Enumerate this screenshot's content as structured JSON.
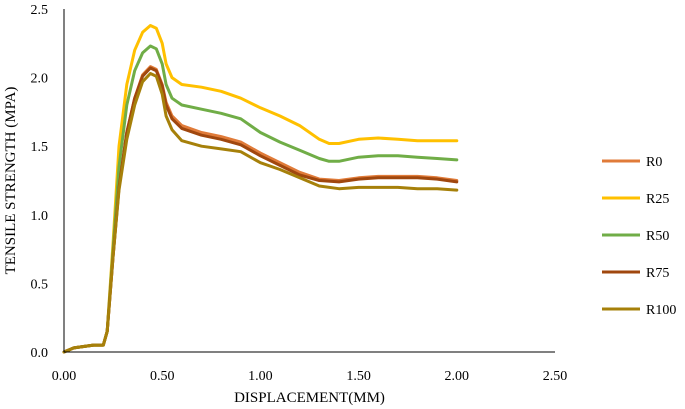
{
  "chart_data": {
    "type": "line",
    "title": "",
    "xlabel": "DISPLACEMENT(MM)",
    "ylabel": "TENSILE STRENGTH (MPA)",
    "xlim": [
      0,
      2.5
    ],
    "ylim": [
      0,
      2.5
    ],
    "x_ticks": [
      0,
      0.5,
      1,
      1.5,
      2,
      2.5
    ],
    "x_tick_labels": [
      "0.00",
      "0.50",
      "1.00",
      "1.50",
      "2.00",
      "2.50"
    ],
    "y_ticks": [
      0,
      0.5,
      1,
      1.5,
      2,
      2.5
    ],
    "y_tick_labels": [
      "0.0",
      "0.5",
      "1.0",
      "1.5",
      "2.0",
      "2.5"
    ],
    "grid": false,
    "legend_position": "right",
    "series": [
      {
        "name": "R0",
        "color": "#E07B39",
        "points": [
          [
            0,
            0
          ],
          [
            0.05,
            0.03
          ],
          [
            0.1,
            0.04
          ],
          [
            0.15,
            0.05
          ],
          [
            0.2,
            0.05
          ],
          [
            0.22,
            0.15
          ],
          [
            0.25,
            0.7
          ],
          [
            0.28,
            1.2
          ],
          [
            0.32,
            1.6
          ],
          [
            0.36,
            1.85
          ],
          [
            0.4,
            2.02
          ],
          [
            0.44,
            2.08
          ],
          [
            0.47,
            2.06
          ],
          [
            0.5,
            1.95
          ],
          [
            0.52,
            1.82
          ],
          [
            0.55,
            1.72
          ],
          [
            0.6,
            1.65
          ],
          [
            0.7,
            1.6
          ],
          [
            0.8,
            1.57
          ],
          [
            0.9,
            1.53
          ],
          [
            1.0,
            1.45
          ],
          [
            1.1,
            1.38
          ],
          [
            1.2,
            1.31
          ],
          [
            1.3,
            1.26
          ],
          [
            1.4,
            1.25
          ],
          [
            1.5,
            1.27
          ],
          [
            1.6,
            1.28
          ],
          [
            1.7,
            1.28
          ],
          [
            1.8,
            1.28
          ],
          [
            1.9,
            1.27
          ],
          [
            2.0,
            1.25
          ]
        ]
      },
      {
        "name": "R25",
        "color": "#FFC000",
        "points": [
          [
            0,
            0
          ],
          [
            0.05,
            0.03
          ],
          [
            0.1,
            0.04
          ],
          [
            0.15,
            0.05
          ],
          [
            0.2,
            0.05
          ],
          [
            0.22,
            0.15
          ],
          [
            0.25,
            0.8
          ],
          [
            0.28,
            1.5
          ],
          [
            0.32,
            1.95
          ],
          [
            0.36,
            2.2
          ],
          [
            0.4,
            2.33
          ],
          [
            0.44,
            2.38
          ],
          [
            0.47,
            2.36
          ],
          [
            0.5,
            2.25
          ],
          [
            0.52,
            2.1
          ],
          [
            0.55,
            2.0
          ],
          [
            0.6,
            1.95
          ],
          [
            0.7,
            1.93
          ],
          [
            0.8,
            1.9
          ],
          [
            0.9,
            1.85
          ],
          [
            1.0,
            1.78
          ],
          [
            1.1,
            1.72
          ],
          [
            1.2,
            1.65
          ],
          [
            1.3,
            1.55
          ],
          [
            1.35,
            1.52
          ],
          [
            1.4,
            1.52
          ],
          [
            1.5,
            1.55
          ],
          [
            1.6,
            1.56
          ],
          [
            1.7,
            1.55
          ],
          [
            1.8,
            1.54
          ],
          [
            1.9,
            1.54
          ],
          [
            2.0,
            1.54
          ]
        ]
      },
      {
        "name": "R50",
        "color": "#70AD47",
        "points": [
          [
            0,
            0
          ],
          [
            0.05,
            0.03
          ],
          [
            0.1,
            0.04
          ],
          [
            0.15,
            0.05
          ],
          [
            0.2,
            0.05
          ],
          [
            0.22,
            0.15
          ],
          [
            0.25,
            0.75
          ],
          [
            0.28,
            1.35
          ],
          [
            0.32,
            1.8
          ],
          [
            0.36,
            2.05
          ],
          [
            0.4,
            2.18
          ],
          [
            0.44,
            2.23
          ],
          [
            0.47,
            2.21
          ],
          [
            0.5,
            2.1
          ],
          [
            0.52,
            1.95
          ],
          [
            0.55,
            1.85
          ],
          [
            0.6,
            1.8
          ],
          [
            0.7,
            1.77
          ],
          [
            0.8,
            1.74
          ],
          [
            0.9,
            1.7
          ],
          [
            1.0,
            1.6
          ],
          [
            1.1,
            1.53
          ],
          [
            1.2,
            1.47
          ],
          [
            1.3,
            1.41
          ],
          [
            1.35,
            1.39
          ],
          [
            1.4,
            1.39
          ],
          [
            1.5,
            1.42
          ],
          [
            1.6,
            1.43
          ],
          [
            1.7,
            1.43
          ],
          [
            1.8,
            1.42
          ],
          [
            1.9,
            1.41
          ],
          [
            2.0,
            1.4
          ]
        ]
      },
      {
        "name": "R75",
        "color": "#A0470E",
        "points": [
          [
            0,
            0
          ],
          [
            0.05,
            0.03
          ],
          [
            0.1,
            0.04
          ],
          [
            0.15,
            0.05
          ],
          [
            0.2,
            0.05
          ],
          [
            0.22,
            0.15
          ],
          [
            0.25,
            0.7
          ],
          [
            0.28,
            1.2
          ],
          [
            0.32,
            1.6
          ],
          [
            0.36,
            1.85
          ],
          [
            0.4,
            2.01
          ],
          [
            0.44,
            2.07
          ],
          [
            0.47,
            2.05
          ],
          [
            0.5,
            1.94
          ],
          [
            0.52,
            1.8
          ],
          [
            0.55,
            1.7
          ],
          [
            0.6,
            1.63
          ],
          [
            0.7,
            1.58
          ],
          [
            0.8,
            1.55
          ],
          [
            0.9,
            1.51
          ],
          [
            1.0,
            1.43
          ],
          [
            1.1,
            1.36
          ],
          [
            1.2,
            1.29
          ],
          [
            1.3,
            1.25
          ],
          [
            1.4,
            1.24
          ],
          [
            1.5,
            1.26
          ],
          [
            1.6,
            1.27
          ],
          [
            1.7,
            1.27
          ],
          [
            1.8,
            1.27
          ],
          [
            1.9,
            1.26
          ],
          [
            2.0,
            1.24
          ]
        ]
      },
      {
        "name": "R100",
        "color": "#A6800A",
        "points": [
          [
            0,
            0
          ],
          [
            0.05,
            0.03
          ],
          [
            0.1,
            0.04
          ],
          [
            0.15,
            0.05
          ],
          [
            0.2,
            0.05
          ],
          [
            0.22,
            0.15
          ],
          [
            0.25,
            0.7
          ],
          [
            0.28,
            1.18
          ],
          [
            0.32,
            1.55
          ],
          [
            0.36,
            1.8
          ],
          [
            0.4,
            1.97
          ],
          [
            0.44,
            2.03
          ],
          [
            0.47,
            2.01
          ],
          [
            0.5,
            1.88
          ],
          [
            0.52,
            1.72
          ],
          [
            0.55,
            1.62
          ],
          [
            0.6,
            1.54
          ],
          [
            0.7,
            1.5
          ],
          [
            0.8,
            1.48
          ],
          [
            0.9,
            1.46
          ],
          [
            1.0,
            1.38
          ],
          [
            1.1,
            1.33
          ],
          [
            1.2,
            1.27
          ],
          [
            1.3,
            1.21
          ],
          [
            1.4,
            1.19
          ],
          [
            1.5,
            1.2
          ],
          [
            1.6,
            1.2
          ],
          [
            1.7,
            1.2
          ],
          [
            1.8,
            1.19
          ],
          [
            1.9,
            1.19
          ],
          [
            2.0,
            1.18
          ]
        ]
      }
    ]
  }
}
